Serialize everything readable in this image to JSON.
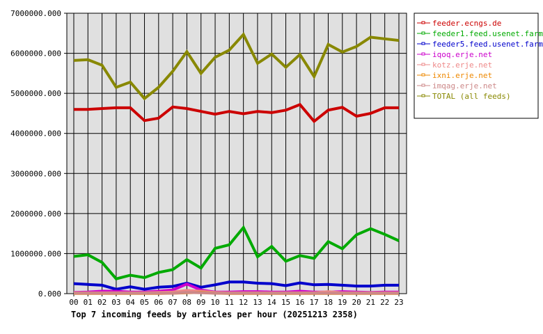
{
  "chart_data": {
    "type": "line",
    "title": "Top 7 incoming feeds by articles per hour (20251213 2358)",
    "xlabel": "",
    "ylabel": "",
    "ylim": [
      0,
      7000000
    ],
    "yticks": [
      "0.000",
      "1000000.000",
      "2000000.000",
      "3000000.000",
      "4000000.000",
      "5000000.000",
      "6000000.000",
      "7000000.000"
    ],
    "categories": [
      "00",
      "01",
      "02",
      "03",
      "04",
      "05",
      "06",
      "07",
      "08",
      "09",
      "10",
      "11",
      "12",
      "13",
      "14",
      "15",
      "16",
      "17",
      "18",
      "19",
      "20",
      "21",
      "22",
      "23"
    ],
    "grid": true,
    "legend_position": "right",
    "series": [
      {
        "name": "feeder.ecngs.de",
        "color": "#cc0000",
        "values": [
          4600000,
          4600000,
          4620000,
          4640000,
          4640000,
          4320000,
          4380000,
          4660000,
          4620000,
          4550000,
          4480000,
          4550000,
          4490000,
          4550000,
          4520000,
          4580000,
          4720000,
          4300000,
          4580000,
          4650000,
          4430000,
          4500000,
          4640000,
          4640000
        ]
      },
      {
        "name": "feeder1.feed.usenet.farm",
        "color": "#00aa00",
        "values": [
          930000,
          970000,
          780000,
          370000,
          460000,
          400000,
          530000,
          600000,
          850000,
          640000,
          1130000,
          1220000,
          1650000,
          920000,
          1180000,
          810000,
          950000,
          880000,
          1300000,
          1120000,
          1470000,
          1620000,
          1480000,
          1320000
        ]
      },
      {
        "name": "feeder5.feed.usenet.farm",
        "color": "#0000cc",
        "values": [
          250000,
          230000,
          210000,
          110000,
          170000,
          110000,
          160000,
          180000,
          260000,
          160000,
          220000,
          290000,
          290000,
          260000,
          250000,
          200000,
          270000,
          220000,
          230000,
          210000,
          190000,
          190000,
          210000,
          210000
        ]
      },
      {
        "name": "iqoq.erje.net",
        "color": "#cc00cc",
        "values": [
          30000,
          40000,
          60000,
          60000,
          40000,
          40000,
          60000,
          90000,
          240000,
          90000,
          40000,
          40000,
          50000,
          50000,
          40000,
          40000,
          60000,
          40000,
          40000,
          50000,
          40000,
          30000,
          40000,
          40000
        ]
      },
      {
        "name": "kotz.erje.net",
        "color": "#ee8888",
        "values": [
          20000,
          20000,
          20000,
          20000,
          20000,
          20000,
          30000,
          40000,
          80000,
          60000,
          30000,
          20000,
          20000,
          20000,
          20000,
          20000,
          20000,
          20000,
          50000,
          20000,
          20000,
          20000,
          20000,
          20000
        ]
      },
      {
        "name": "ixni.erje.net",
        "color": "#ee8800",
        "values": [
          5000,
          5000,
          5000,
          5000,
          5000,
          5000,
          5000,
          10000,
          20000,
          30000,
          10000,
          5000,
          5000,
          5000,
          5000,
          5000,
          5000,
          5000,
          5000,
          5000,
          5000,
          5000,
          5000,
          5000
        ]
      },
      {
        "name": "imqag.erje.net",
        "color": "#cc8888",
        "values": [
          10000,
          10000,
          10000,
          10000,
          10000,
          10000,
          10000,
          10000,
          30000,
          20000,
          10000,
          10000,
          10000,
          10000,
          10000,
          10000,
          10000,
          10000,
          10000,
          10000,
          10000,
          10000,
          10000,
          10000
        ]
      },
      {
        "name": "TOTAL (all feeds)",
        "color": "#888800",
        "values": [
          5820000,
          5840000,
          5700000,
          5150000,
          5280000,
          4870000,
          5150000,
          5550000,
          6040000,
          5500000,
          5900000,
          6080000,
          6470000,
          5750000,
          5980000,
          5650000,
          5970000,
          5420000,
          6220000,
          6030000,
          6170000,
          6400000,
          6360000,
          6320000
        ]
      }
    ]
  }
}
